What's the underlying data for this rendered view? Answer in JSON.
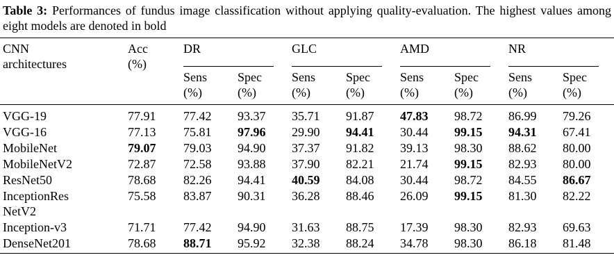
{
  "caption": {
    "label": "Table 3:",
    "text": "Performances of fundus image classification without applying quality-evaluation. The highest values among eight models are denoted in bold"
  },
  "table": {
    "header": {
      "model": "CNN architectures",
      "acc": "Acc (%)",
      "groups": [
        "DR",
        "GLC",
        "AMD",
        "NR"
      ],
      "subheaders": [
        "Sens (%)",
        "Spec (%)",
        "Sens (%)",
        "Spec (%)",
        "Sens (%)",
        "Spec (%)",
        "Sens (%)",
        "Spec (%)"
      ]
    },
    "rows": [
      {
        "model": "VGG-19",
        "cells": [
          "77.91",
          "77.42",
          "93.37",
          "35.71",
          "91.87",
          {
            "text": "47.83",
            "bold": true
          },
          "98.72",
          "86.99",
          "79.26"
        ]
      },
      {
        "model": "VGG-16",
        "cells": [
          "77.13",
          "75.81",
          {
            "text": "97.96",
            "bold": true
          },
          "29.90",
          {
            "text": "94.41",
            "bold": true
          },
          "30.44",
          {
            "text": "99.15",
            "bold": true
          },
          {
            "text": "94.31",
            "bold": true
          },
          "67.41"
        ]
      },
      {
        "model": "MobileNet",
        "cells": [
          {
            "text": "79.07",
            "bold": true
          },
          "79.03",
          "94.90",
          "37.37",
          "91.82",
          "39.13",
          "98.30",
          "88.62",
          "80.00"
        ]
      },
      {
        "model": "MobileNetV2",
        "cells": [
          "72.87",
          "72.58",
          "93.88",
          "37.90",
          "82.21",
          "21.74",
          {
            "text": "99.15",
            "bold": true
          },
          "82.93",
          "80.00"
        ]
      },
      {
        "model": "ResNet50",
        "cells": [
          "78.68",
          "82.26",
          "94.41",
          {
            "text": "40.59",
            "bold": true
          },
          "84.08",
          "30.44",
          "98.72",
          "84.55",
          {
            "text": "86.67",
            "bold": true
          }
        ]
      },
      {
        "model": "InceptionRes NetV2",
        "cells": [
          "75.58",
          "83.87",
          "90.31",
          "36.28",
          "88.46",
          "26.09",
          {
            "text": "99.15",
            "bold": true
          },
          "81.30",
          "82.22"
        ]
      },
      {
        "model": "Inception-v3",
        "cells": [
          "71.71",
          "77.42",
          "94.90",
          "31.63",
          "88.75",
          "17.39",
          "98.30",
          "82.93",
          "69.63"
        ]
      },
      {
        "model": "DenseNet201",
        "cells": [
          "78.68",
          {
            "text": "88.71",
            "bold": true
          },
          "95.92",
          "32.38",
          "88.24",
          "34.78",
          "98.30",
          "86.18",
          "81.48"
        ]
      }
    ]
  }
}
